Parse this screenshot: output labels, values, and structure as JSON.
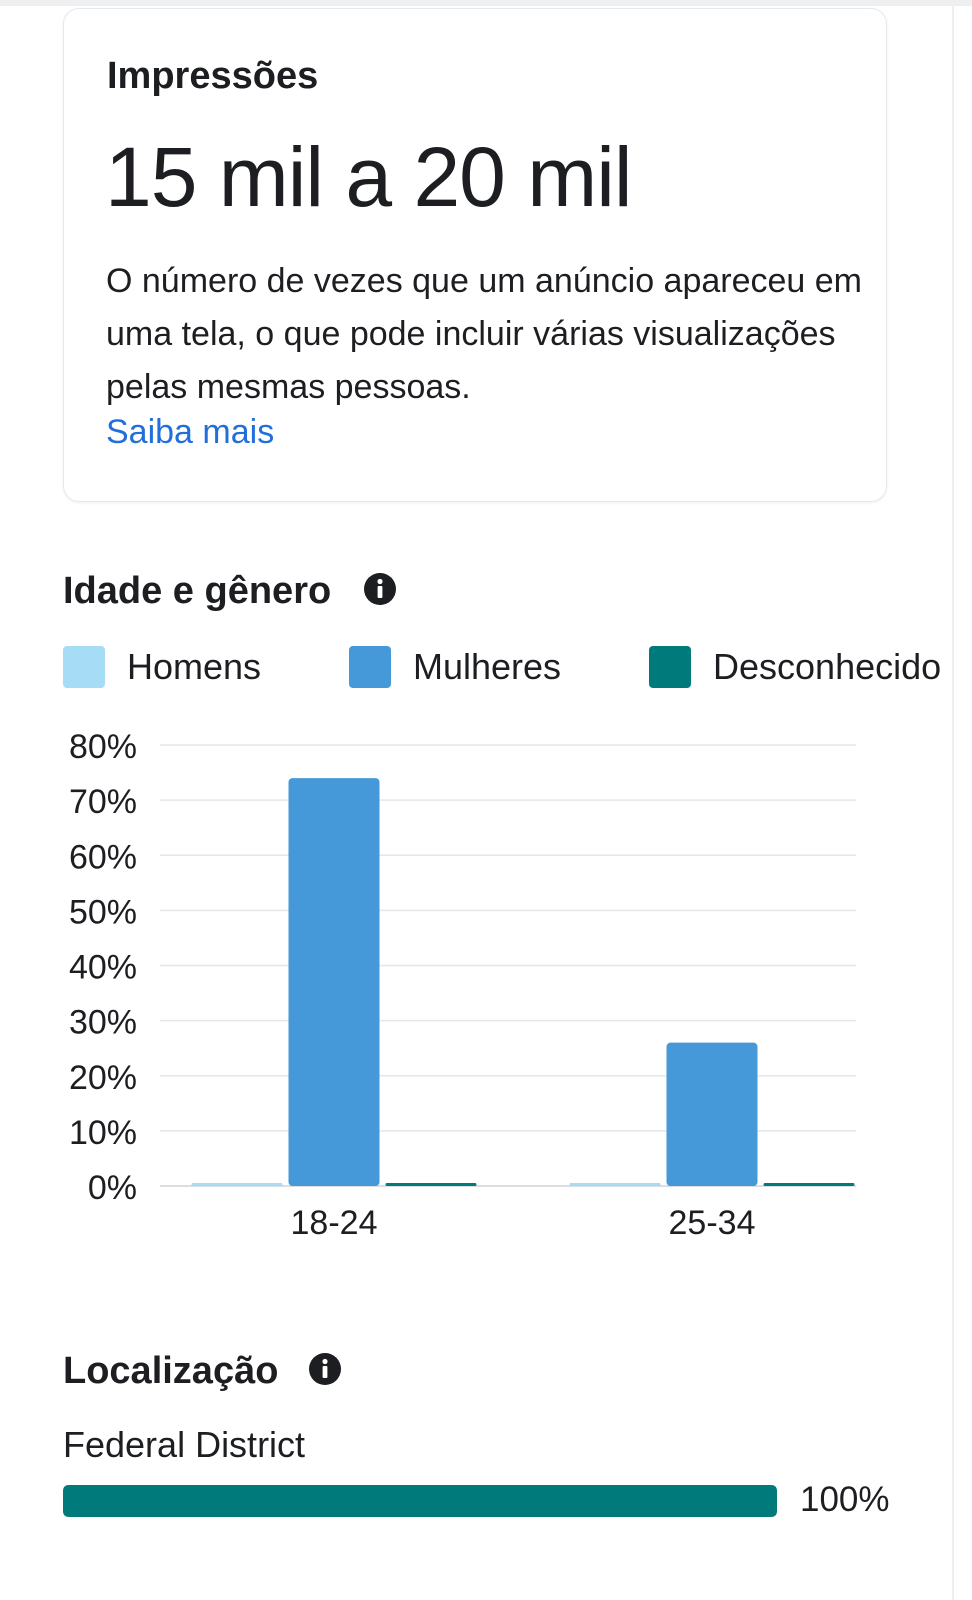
{
  "impressions": {
    "title": "Impressões",
    "value": "15 mil a 20 mil",
    "description": "O número de vezes que um anúncio apareceu em uma tela, o que pode incluir várias visualizações pelas mesmas pessoas.",
    "link": "Saiba mais"
  },
  "age_gender": {
    "title": "Idade e gênero",
    "info_icon": "info-icon",
    "legend": [
      {
        "label": "Homens",
        "color": "#a6dcf6"
      },
      {
        "label": "Mulheres",
        "color": "#4599d8"
      },
      {
        "label": "Desconhecido",
        "color": "#007a7a"
      }
    ]
  },
  "chart_data": {
    "type": "bar",
    "categories": [
      "18-24",
      "25-34"
    ],
    "series": [
      {
        "name": "Homens",
        "color": "#a6dcf6",
        "values": [
          0,
          0
        ]
      },
      {
        "name": "Mulheres",
        "color": "#4599d8",
        "values": [
          74,
          26
        ]
      },
      {
        "name": "Desconhecido",
        "color": "#007a7a",
        "values": [
          0,
          0
        ]
      }
    ],
    "ylim": [
      0,
      80
    ],
    "yticks": [
      "0%",
      "10%",
      "20%",
      "30%",
      "40%",
      "50%",
      "60%",
      "70%",
      "80%"
    ],
    "grid": true,
    "legend_position": "top"
  },
  "location": {
    "title": "Localização",
    "info_icon": "info-icon",
    "items": [
      {
        "label": "Federal District",
        "value": 100,
        "percent": "100%",
        "color": "#007a7a"
      }
    ]
  }
}
